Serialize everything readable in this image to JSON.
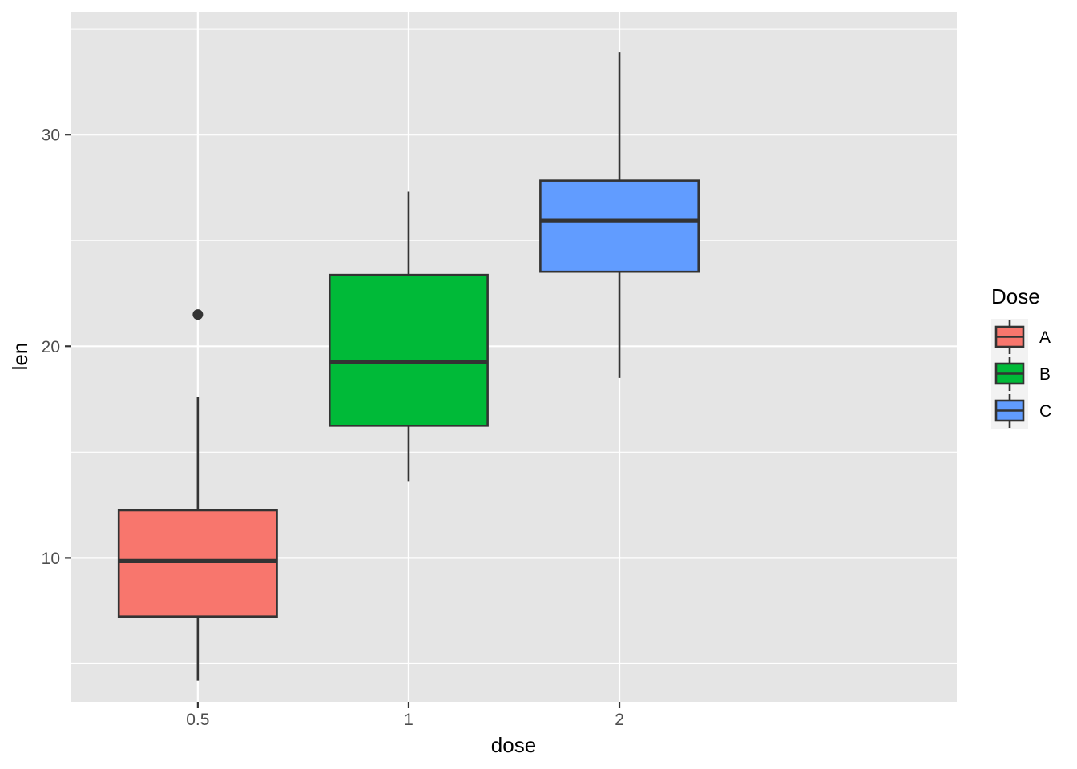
{
  "chart_data": {
    "type": "boxplot",
    "xlabel": "dose",
    "ylabel": "len",
    "categories": [
      "0.5",
      "1",
      "2"
    ],
    "ylim": [
      3.2,
      35.8
    ],
    "y_ticks": [
      10,
      20,
      30
    ],
    "y_tick_labels": [
      "10",
      "20",
      "30"
    ],
    "grid": true,
    "background": "#e5e5e5",
    "legend": {
      "title": "Dose",
      "position": "right",
      "entries": [
        {
          "label": "A",
          "color": "#f8766d"
        },
        {
          "label": "B",
          "color": "#00ba38"
        },
        {
          "label": "C",
          "color": "#619cff"
        }
      ]
    },
    "series": [
      {
        "category": "0.5",
        "group": "A",
        "color": "#f8766d",
        "lower_whisker": 4.2,
        "q1": 7.225,
        "median": 9.85,
        "q3": 12.25,
        "upper_whisker": 17.6,
        "outliers": [
          21.5
        ]
      },
      {
        "category": "1",
        "group": "B",
        "color": "#00ba38",
        "lower_whisker": 13.6,
        "q1": 16.25,
        "median": 19.25,
        "q3": 23.375,
        "upper_whisker": 27.3,
        "outliers": []
      },
      {
        "category": "2",
        "group": "C",
        "color": "#619cff",
        "lower_whisker": 18.5,
        "q1": 23.525,
        "median": 25.95,
        "q3": 27.825,
        "upper_whisker": 33.9,
        "outliers": []
      }
    ]
  }
}
